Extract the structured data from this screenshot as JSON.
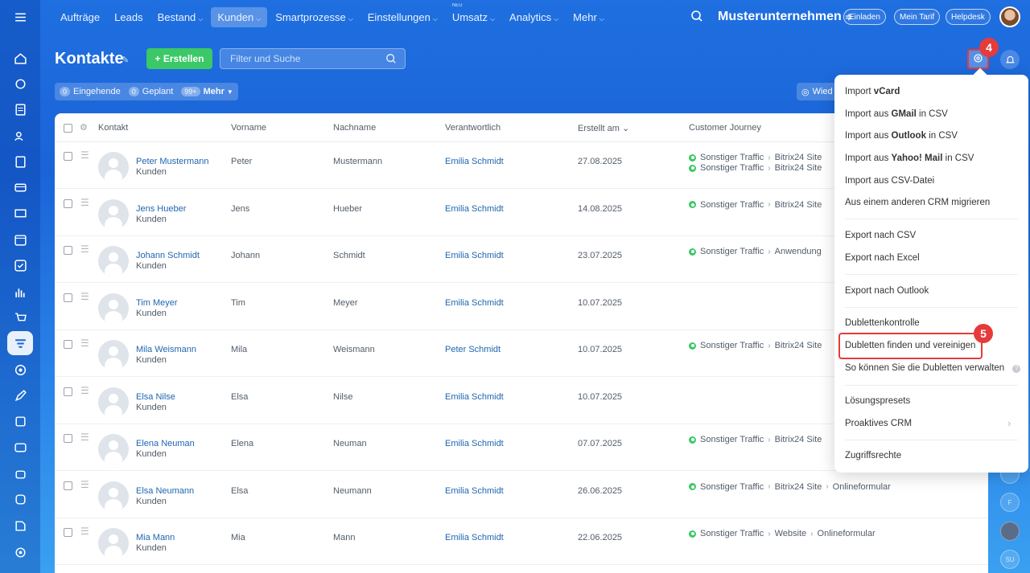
{
  "nav": {
    "items": [
      {
        "label": "Aufträge",
        "caret": false
      },
      {
        "label": "Leads",
        "caret": false
      },
      {
        "label": "Bestand",
        "caret": true
      },
      {
        "label": "Kunden",
        "caret": true,
        "active": true
      },
      {
        "label": "Smartprozesse",
        "caret": true
      },
      {
        "label": "Einstellungen",
        "caret": true
      },
      {
        "label": "Umsatz",
        "caret": true,
        "badge": "NEU"
      },
      {
        "label": "Analytics",
        "caret": true
      },
      {
        "label": "Mehr",
        "caret": true
      }
    ],
    "company": "Musterunternehmen",
    "invite": "Einladen",
    "plan": "Mein Tarif",
    "helpdesk": "Helpdesk"
  },
  "page": {
    "title": "Kontakte",
    "create_label": "+ Erstellen",
    "search_placeholder": "Filter und Suche",
    "step4": "4",
    "step5": "5"
  },
  "counters": {
    "incoming_count": "0",
    "incoming_label": "Eingehende",
    "planned_count": "0",
    "planned_label": "Geplant",
    "more_count": "99+",
    "more_label": "Mehr",
    "repeat_label": "Wied"
  },
  "table": {
    "headers": {
      "contact": "Kontakt",
      "first": "Vorname",
      "last": "Nachname",
      "responsible": "Verantwortlich",
      "created": "Erstellt am ⌄",
      "journey": "Customer Journey"
    },
    "rows": [
      {
        "name": "Peter Mustermann",
        "type": "Kunden",
        "first": "Peter",
        "last": "Mustermann",
        "resp": "Emilia Schmidt",
        "created": "27.08.2025",
        "journey": [
          [
            "Sonstiger Traffic",
            "Bitrix24 Site"
          ],
          [
            "Sonstiger Traffic",
            "Bitrix24 Site"
          ]
        ]
      },
      {
        "name": "Jens Hueber",
        "type": "Kunden",
        "first": "Jens",
        "last": "Hueber",
        "resp": "Emilia Schmidt",
        "created": "14.08.2025",
        "journey": [
          [
            "Sonstiger Traffic",
            "Bitrix24 Site"
          ]
        ]
      },
      {
        "name": "Johann Schmidt",
        "type": "Kunden",
        "first": "Johann",
        "last": "Schmidt",
        "resp": "Emilia Schmidt",
        "created": "23.07.2025",
        "journey": [
          [
            "Sonstiger Traffic",
            "Anwendung"
          ]
        ]
      },
      {
        "name": "Tim Meyer",
        "type": "Kunden",
        "first": "Tim",
        "last": "Meyer",
        "resp": "Emilia Schmidt",
        "created": "10.07.2025",
        "journey": []
      },
      {
        "name": "Mila Weismann",
        "type": "Kunden",
        "first": "Mila",
        "last": "Weismann",
        "resp": "Peter Schmidt",
        "created": "10.07.2025",
        "journey": [
          [
            "Sonstiger Traffic",
            "Bitrix24 Site"
          ]
        ]
      },
      {
        "name": "Elsa Nilse",
        "type": "Kunden",
        "first": "Elsa",
        "last": "Nilse",
        "resp": "Emilia Schmidt",
        "created": "10.07.2025",
        "journey": []
      },
      {
        "name": "Elena Neuman",
        "type": "Kunden",
        "first": "Elena",
        "last": "Neuman",
        "resp": "Emilia Schmidt",
        "created": "07.07.2025",
        "journey": [
          [
            "Sonstiger Traffic",
            "Bitrix24 Site"
          ]
        ]
      },
      {
        "name": "Elsa Neumann",
        "type": "Kunden",
        "first": "Elsa",
        "last": "Neumann",
        "resp": "Emilia Schmidt",
        "created": "26.06.2025",
        "journey": [
          [
            "Sonstiger Traffic",
            "Bitrix24 Site",
            "Onlineformular"
          ]
        ]
      },
      {
        "name": "Mia Mann",
        "type": "Kunden",
        "first": "Mia",
        "last": "Mann",
        "resp": "Emilia Schmidt",
        "created": "22.06.2025",
        "journey": [
          [
            "Sonstiger Traffic",
            "Website",
            "Onlineformular"
          ]
        ]
      }
    ]
  },
  "menu": {
    "import_vcard_pre": "Import ",
    "import_vcard_bold": "vCard",
    "import_gmail_pre": "Import aus ",
    "import_gmail_bold": "GMail",
    "import_gmail_post": " in CSV",
    "import_outlook_pre": "Import aus ",
    "import_outlook_bold": "Outlook",
    "import_outlook_post": " in CSV",
    "import_yahoo_pre": "Import aus ",
    "import_yahoo_bold": "Yahoo! Mail",
    "import_yahoo_post": " in CSV",
    "import_csv": "Import aus CSV-Datei",
    "migrate": "Aus einem anderen CRM migrieren",
    "export_csv": "Export nach CSV",
    "export_excel": "Export nach Excel",
    "export_outlook": "Export nach Outlook",
    "duplicates": "Dublettenkontrolle",
    "find_merge": "Dubletten finden und vereinigen",
    "manage_duplicates": "So können Sie die Dubletten verwalten",
    "presets": "Lösungspresets",
    "proactive": "Proaktives CRM",
    "access": "Zugriffsrechte"
  },
  "right_rail": {
    "avatar_f": "F",
    "avatar_su": "SU"
  },
  "colors": {
    "accent": "#1a64d8",
    "create": "#3bc866",
    "highlight": "#e53b3b",
    "link": "#2067b0"
  }
}
